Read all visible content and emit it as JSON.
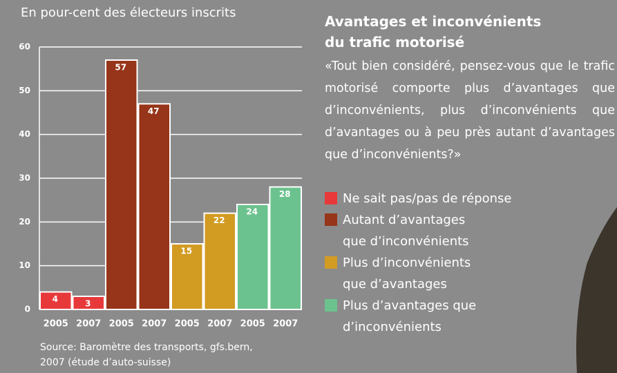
{
  "chart_data": {
    "type": "bar",
    "title": "Avantages et inconvénients\ndu trafic motorisé",
    "subtitle": "«Tout bien considéré, pensez-vous que le trafic motorisé comporte plus d’avantages que d’inconvénients, plus d’inconvénients que d’avantages ou à peu près autant d’avantages que d’inconvénients?»",
    "y_label": "En pour-cent des électeurs inscrits",
    "source": "Source: Baromètre des transports, gfs.bern,\n2007 (étude d’auto-suisse)",
    "categories": [
      "2005",
      "2007",
      "2005",
      "2007",
      "2005",
      "2007",
      "2005",
      "2007"
    ],
    "series": [
      {
        "name": "Ne sait pas/pas de réponse",
        "color": "#e8393a",
        "values": [
          4,
          3,
          null,
          null,
          null,
          null,
          null,
          null
        ]
      },
      {
        "name": "Autant d’avantages\nque d’inconvénients",
        "color": "#963519",
        "values": [
          null,
          null,
          57,
          47,
          null,
          null,
          null,
          null
        ]
      },
      {
        "name": "Plus d’inconvénients\nque d’avantages",
        "color": "#d29b22",
        "values": [
          null,
          null,
          null,
          null,
          15,
          22,
          null,
          null
        ]
      },
      {
        "name": "Plus d’avantages que\nd’inconvénients",
        "color": "#6cc28e",
        "values": [
          null,
          null,
          null,
          null,
          null,
          null,
          24,
          28
        ]
      }
    ],
    "ylim": [
      0,
      60
    ],
    "yticks": [
      0,
      10,
      20,
      30,
      40,
      50,
      60
    ],
    "grid": true
  }
}
